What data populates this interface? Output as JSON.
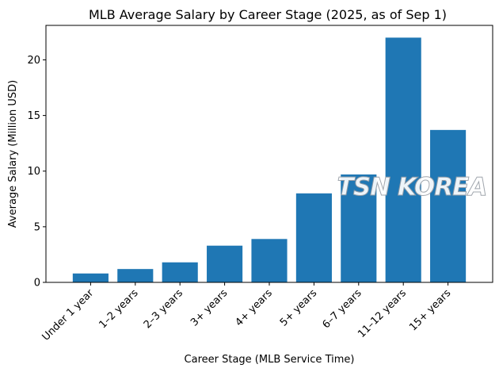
{
  "chart_data": {
    "type": "bar",
    "title": "MLB Average Salary by Career Stage (2025, as of Sep 1)",
    "xlabel": "Career Stage (MLB Service Time)",
    "ylabel": "Average Salary (Million USD)",
    "categories": [
      "Under 1 year",
      "1–2 years",
      "2–3 years",
      "3+ years",
      "4+ years",
      "5+ years",
      "6–7 years",
      "11–12 years",
      "15+ years"
    ],
    "values": [
      0.8,
      1.2,
      1.8,
      3.3,
      3.9,
      8.0,
      9.7,
      22.0,
      13.7
    ],
    "ylim": [
      0,
      23.1
    ],
    "yticks": [
      0,
      5,
      10,
      15,
      20
    ],
    "bar_color": "#1f77b4",
    "grid": false
  },
  "watermark": {
    "text": "TSN KOREA"
  }
}
